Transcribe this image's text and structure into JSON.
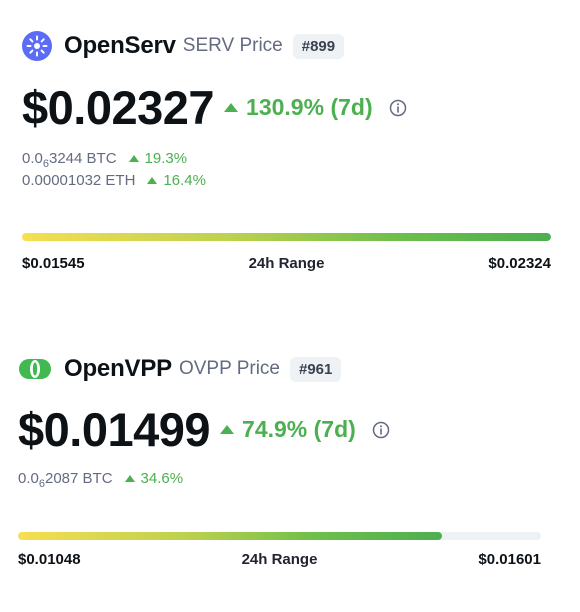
{
  "coins": [
    {
      "name": "OpenServ",
      "symbol_label": "SERV Price",
      "rank": "#899",
      "logo_icon": "openserv-logo-icon",
      "price": "$0.02327",
      "change": "130.9% (7d)",
      "conversions": [
        {
          "base": "0.0",
          "sub": "6",
          "rest": "3244 BTC",
          "change": "19.3%"
        },
        {
          "base": "0.00001032 ETH",
          "sub": "",
          "rest": "",
          "change": "16.4%"
        }
      ],
      "range": {
        "low": "$0.01545",
        "label": "24h Range",
        "high": "$0.02324",
        "fill_percent": 100
      }
    },
    {
      "name": "OpenVPP",
      "symbol_label": "OVPP Price",
      "rank": "#961",
      "logo_icon": "openvpp-logo-icon",
      "price": "$0.01499",
      "change": "74.9% (7d)",
      "conversions": [
        {
          "base": "0.0",
          "sub": "6",
          "rest": "2087 BTC",
          "change": "34.6%"
        }
      ],
      "range": {
        "low": "$0.01048",
        "label": "24h Range",
        "high": "$0.01601",
        "fill_percent": 81
      }
    }
  ],
  "colors": {
    "up": "#4caf50",
    "text": "#0d1217",
    "muted": "#646b80",
    "badge_bg": "#eff2f5",
    "openserv_brand": "#5b6cf6",
    "openvpp_brand": "#3fb950"
  }
}
